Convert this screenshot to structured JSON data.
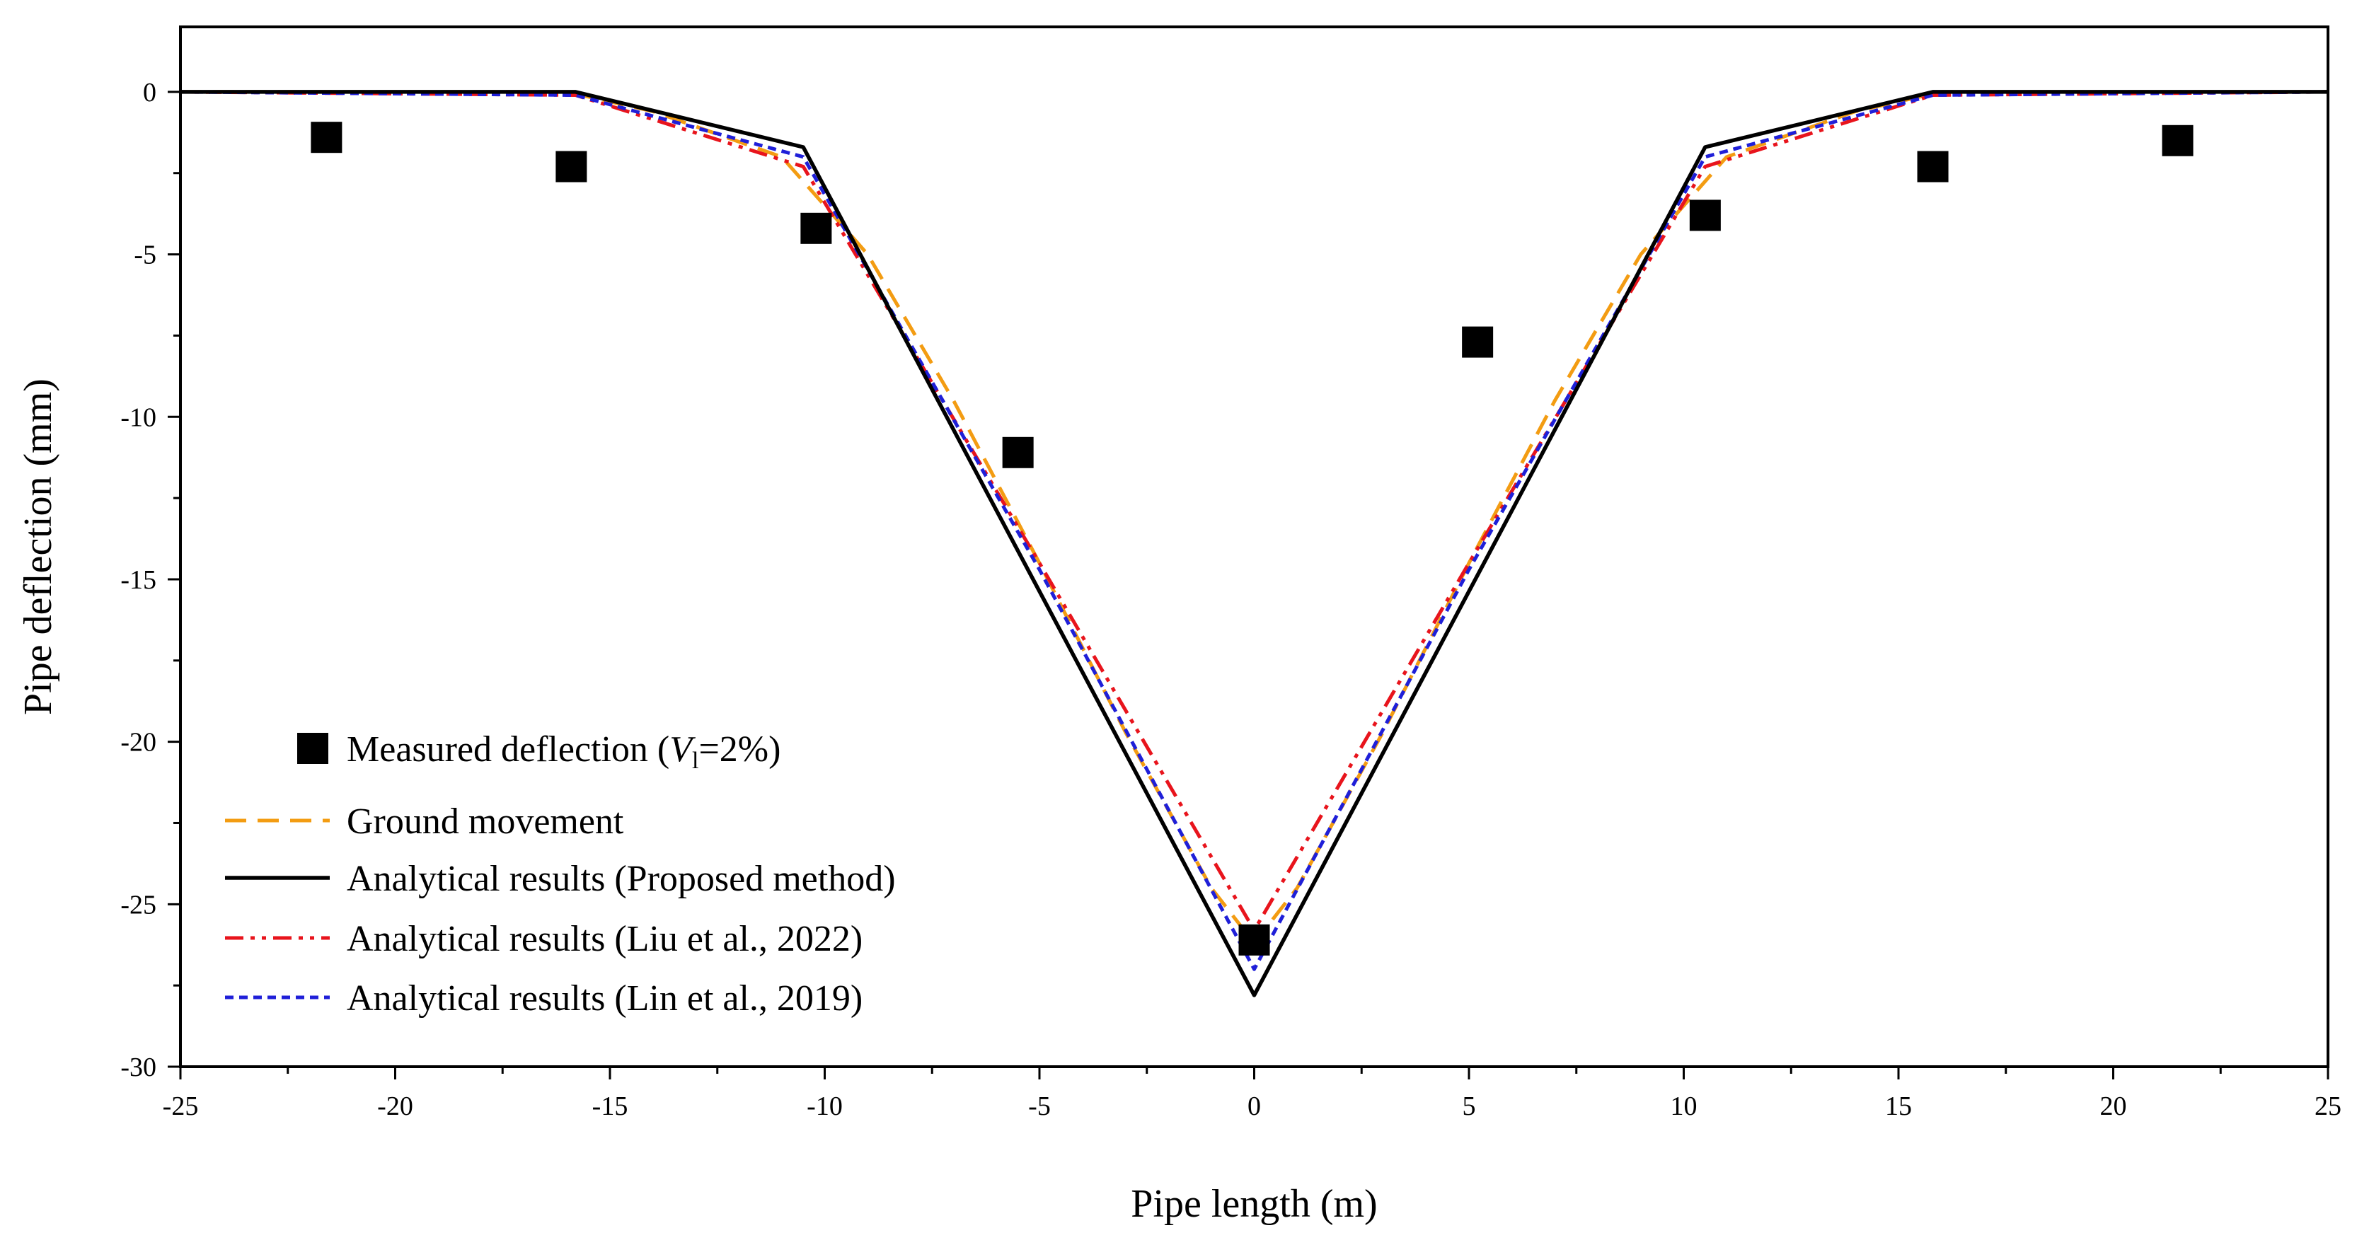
{
  "chart_data": {
    "type": "scatter+line",
    "title": "",
    "xlabel": "Pipe length (m)",
    "ylabel": "Pipe deflection (mm)",
    "xlim": [
      -25,
      25
    ],
    "ylim": [
      -30,
      2
    ],
    "xticks": [
      -25,
      -20,
      -15,
      -10,
      -5,
      0,
      5,
      10,
      15,
      20,
      25
    ],
    "yticks": [
      0,
      -5,
      -10,
      -15,
      -20,
      -25,
      -30
    ],
    "legend_position": "lower-left",
    "series": [
      {
        "name": "Measured deflection (V_l=2%)",
        "legend": {
          "prefix": "Measured deflection (",
          "var": "V",
          "sub": "l",
          "suffix": "=2%)"
        },
        "style": "markers",
        "color": "#000000",
        "x": [
          -21.6,
          -15.9,
          -10.2,
          -5.5,
          0,
          5.2,
          10.5,
          15.8,
          21.5
        ],
        "y": [
          -1.4,
          -2.3,
          -4.2,
          -11.1,
          -26.1,
          -7.7,
          -3.8,
          -2.3,
          -1.5
        ]
      },
      {
        "name": "Ground movement",
        "style": "dash",
        "color": "#f39c12",
        "x": [
          -25,
          -16,
          -14,
          -11,
          -9,
          -7,
          -5,
          -3,
          -1,
          0,
          1,
          3,
          5,
          7,
          9,
          11,
          14,
          16,
          25
        ],
        "y": [
          0,
          0,
          -0.6,
          -2.0,
          -5.0,
          -9.5,
          -14.5,
          -19.7,
          -24.5,
          -26.2,
          -24.5,
          -19.7,
          -14.5,
          -9.5,
          -5.0,
          -2.0,
          -0.6,
          0,
          0
        ]
      },
      {
        "name": "Analytical results (Proposed method)",
        "style": "solid",
        "color": "#000000",
        "x": [
          -25,
          -15.8,
          -10.5,
          0,
          10.5,
          15.8,
          25
        ],
        "y": [
          0,
          0,
          -1.7,
          -27.8,
          -1.7,
          0,
          0
        ]
      },
      {
        "name": "Analytical results (Liu et al., 2022)",
        "style": "dash-dot-dot",
        "color": "#e8141c",
        "x": [
          -25,
          -15.8,
          -10.5,
          -5,
          0,
          5,
          10.5,
          15.8,
          25
        ],
        "y": [
          0,
          -0.1,
          -2.3,
          -14.5,
          -25.8,
          -14.5,
          -2.3,
          -0.1,
          0
        ]
      },
      {
        "name": "Analytical results (Lin et al., 2019)",
        "style": "short-dash",
        "color": "#1f1fd8",
        "x": [
          -25,
          -15.8,
          -10.5,
          -5,
          0,
          5,
          10.5,
          15.8,
          25
        ],
        "y": [
          0,
          -0.1,
          -2.0,
          -14.7,
          -27.0,
          -14.7,
          -2.0,
          -0.1,
          0
        ]
      }
    ]
  }
}
